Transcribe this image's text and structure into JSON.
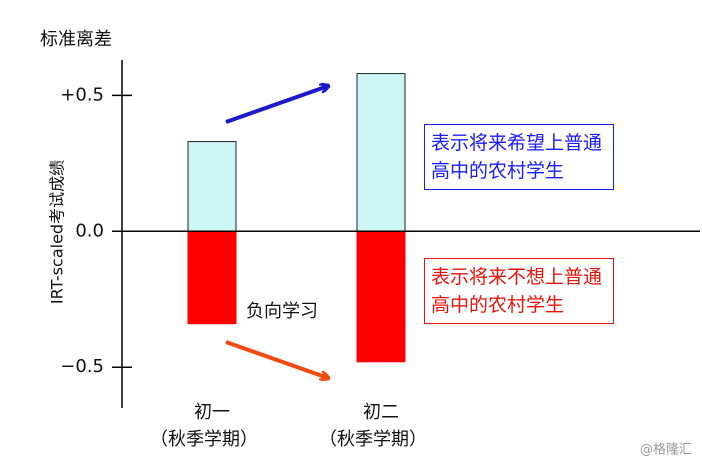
{
  "chart_data": {
    "type": "bar",
    "title": "标准离差",
    "y_label": "IRT-scaled考试成绩",
    "categories": [
      "初一",
      "初二"
    ],
    "category_notes": [
      "（秋季学期）",
      "（秋季学期）"
    ],
    "series": [
      {
        "name": "表示将来希望上普通高中的农村学生",
        "color": "#ccf5f5",
        "text_color": "#1a1aff",
        "values": [
          0.33,
          0.58
        ]
      },
      {
        "name": "表示将来不想上普通高中的农村学生",
        "color": "#ff0000",
        "text_color": "#e8140c",
        "values": [
          -0.34,
          -0.48
        ]
      }
    ],
    "ylim": [
      -0.65,
      0.63
    ],
    "yticks": [
      {
        "value": 0.5,
        "label": "+0.5"
      },
      {
        "value": 0,
        "label": "0.0"
      },
      {
        "value": -0.5,
        "label": "−0.5"
      }
    ],
    "annotation": "负向学习",
    "watermark": "@格隆汇"
  }
}
